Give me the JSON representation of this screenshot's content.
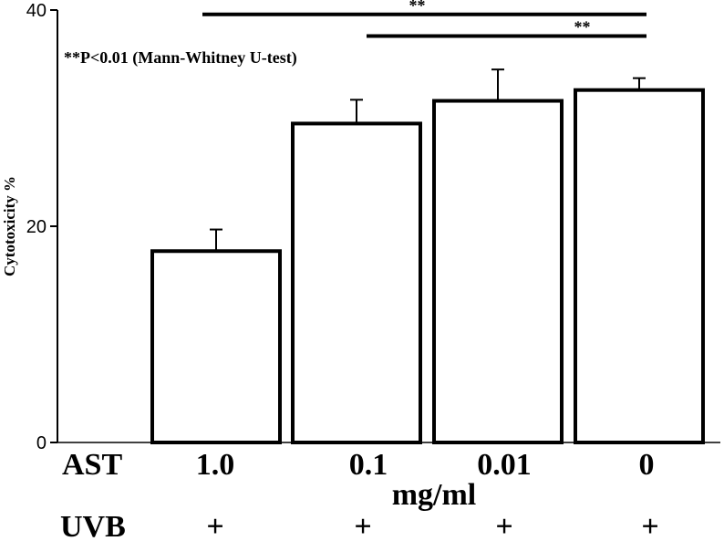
{
  "chart_data": {
    "type": "bar",
    "ylabel": "Cytotoxicity %",
    "ylim": [
      0,
      40
    ],
    "yticks": [
      0,
      20,
      40
    ],
    "row_labels": {
      "ast": "AST",
      "uvb": "UVB"
    },
    "categories": [
      "1.0",
      "0.1",
      "0.01",
      "0"
    ],
    "unit_label": "mg/ml",
    "uvb_values": [
      "+",
      "+",
      "+",
      "+"
    ],
    "values": [
      17.7,
      29.5,
      31.6,
      32.6
    ],
    "errors": [
      2.0,
      2.2,
      2.9,
      1.1
    ],
    "annotation": "**P<0.01 (Mann-Whitney U-test)",
    "significance": [
      {
        "from": 0,
        "to": 3,
        "label": "**",
        "y": 39.6
      },
      {
        "from": 2,
        "to": 3,
        "label": "**",
        "y": 37.6
      }
    ],
    "colors": {
      "bar_fill": "#ffffff",
      "bar_stroke": "#000000"
    }
  }
}
